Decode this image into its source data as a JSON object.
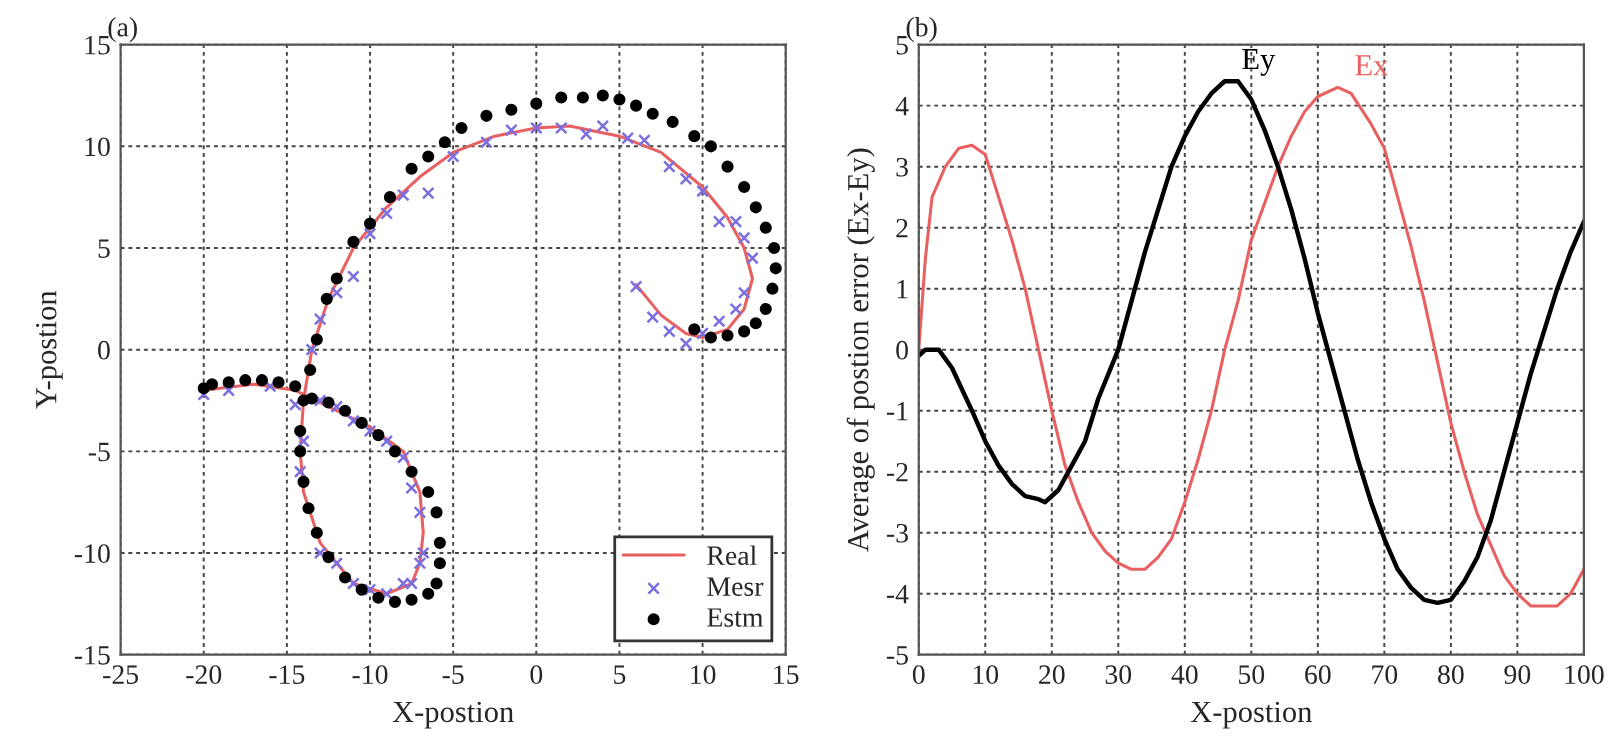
{
  "chart_data": [
    {
      "type": "line",
      "title": "(a)",
      "xlabel": "X-postion",
      "ylabel": "Y-postion",
      "xlim": [
        -25,
        15
      ],
      "ylim": [
        -15,
        15
      ],
      "xticks": [
        -25,
        -20,
        -15,
        -10,
        -5,
        0,
        5,
        10,
        15
      ],
      "yticks": [
        -15,
        -10,
        -5,
        0,
        5,
        10,
        15
      ],
      "grid": true,
      "legend": "bottom right",
      "series": [
        {
          "name": "Real",
          "type": "line",
          "color": "#e8605f",
          "marker": "none",
          "x": [
            -20,
            -17,
            -14.5,
            -12,
            -10,
            -8,
            -7,
            -6.8,
            -7,
            -7.5,
            -9,
            -11,
            -13,
            -14,
            -14.2,
            -14,
            -13.5,
            -12.5,
            -11,
            -9,
            -7,
            -5,
            -2.5,
            0,
            2,
            5,
            7.5,
            10,
            11.5,
            12.5,
            13,
            12.5,
            11.5,
            10,
            9,
            7.5,
            6
          ],
          "values": [
            -2,
            -1.7,
            -2,
            -3,
            -3.8,
            -5,
            -7,
            -9,
            -10.5,
            -11.5,
            -12,
            -11.5,
            -9.5,
            -7,
            -5,
            -2.5,
            0,
            2.5,
            5,
            7,
            8.5,
            9.7,
            10.5,
            10.9,
            11,
            10.5,
            9.7,
            8,
            6.5,
            5,
            3.5,
            2,
            1,
            0.6,
            0.8,
            1.7,
            3.2
          ]
        },
        {
          "name": "Mesr",
          "type": "scatter",
          "color": "#7b6fe0",
          "marker": "cross",
          "x": [
            -20,
            -18.5,
            -16,
            -14.5,
            -14,
            -13,
            -12,
            -11,
            -10,
            -9,
            -8,
            -7.5,
            -7,
            -6.8,
            -7,
            -7.5,
            -8,
            -9,
            -10,
            -11,
            -12,
            -13,
            -14,
            -14.2,
            -14,
            -13.5,
            -13,
            -12,
            -11,
            -10,
            -9,
            -8,
            -6.5,
            -5,
            -3,
            -1.5,
            0,
            1.5,
            3,
            4,
            5.5,
            6.5,
            8,
            9,
            10,
            11,
            12,
            12.5,
            13,
            12.5,
            12,
            11,
            10,
            9,
            8,
            7,
            6
          ],
          "values": [
            -2.2,
            -2,
            -1.8,
            -2.7,
            null,
            -2.5,
            -2.8,
            -3.5,
            -4,
            -4.5,
            -5.3,
            -6.8,
            -8,
            -10,
            -10.5,
            -11.5,
            -11.5,
            -12,
            -11.8,
            -11.5,
            -10.5,
            -10,
            null,
            -6,
            -4.5,
            0,
            1.5,
            2.8,
            3.6,
            5.7,
            6.7,
            7.6,
            7.7,
            9.5,
            10.2,
            10.8,
            10.9,
            10.9,
            10.6,
            11,
            10.4,
            10.3,
            9,
            8.4,
            7.8,
            6.3,
            6.3,
            5.5,
            4.5,
            2.8,
            2,
            1.4,
            0.8,
            0.3,
            0.9,
            1.6,
            3.1
          ]
        },
        {
          "name": "Estm",
          "type": "scatter",
          "color": "#000000",
          "marker": "circle",
          "x": [
            -20,
            -19.5,
            -18.5,
            -17.5,
            -16.5,
            -15.5,
            -14.5,
            -13.5,
            -12.5,
            -11.5,
            -10.5,
            -9.5,
            -8.5,
            -7.5,
            -6.5,
            -6,
            -5.8,
            -5.8,
            -6,
            -6.5,
            -7.5,
            -8.5,
            -9.5,
            -10.5,
            -11.5,
            -12.5,
            -13.2,
            -13.7,
            -14,
            -14.2,
            -14.2,
            -14,
            -13.6,
            -13.2,
            -12.6,
            -12,
            -11,
            -10,
            -8.8,
            -7.5,
            -6.5,
            -5.5,
            -4.5,
            -3,
            -1.5,
            0,
            1.5,
            2.8,
            4,
            5,
            6,
            7,
            8.2,
            9.5,
            10.5,
            11.5,
            12.5,
            13.2,
            13.8,
            14.3,
            14.4,
            14.2,
            13.8,
            13.2,
            12.5,
            11.5,
            10.5,
            9.5
          ],
          "values": [
            -1.9,
            -1.7,
            -1.6,
            -1.5,
            -1.5,
            -1.6,
            -1.8,
            -2.4,
            -2.6,
            -3,
            -3.6,
            -4.2,
            -5,
            -6,
            -7,
            -8,
            -9.5,
            -10.5,
            -11.5,
            -12,
            -12.3,
            -12.4,
            -12.2,
            -11.8,
            -11.2,
            -10.2,
            -9,
            -7.8,
            -6.5,
            -5,
            -4,
            -2.5,
            -1,
            0.5,
            2.5,
            3.5,
            5.3,
            6.2,
            7.5,
            8.9,
            9.5,
            10.2,
            10.9,
            11.5,
            11.8,
            12.1,
            12.4,
            12.4,
            12.5,
            12.3,
            12,
            11.6,
            11.2,
            10.5,
            10,
            9,
            8,
            7,
            6,
            5,
            4,
            3,
            2,
            1.3,
            0.9,
            0.7,
            0.6,
            1
          ]
        }
      ]
    },
    {
      "type": "line",
      "title": "(b)",
      "xlabel": "X-postion",
      "ylabel": "Average of postion error (Ex-Ey)",
      "xlim": [
        0,
        100
      ],
      "ylim": [
        -5,
        5
      ],
      "xticks": [
        0,
        10,
        20,
        30,
        40,
        50,
        60,
        70,
        80,
        90,
        100
      ],
      "yticks": [
        -5,
        -4,
        -3,
        -2,
        -1,
        0,
        1,
        2,
        3,
        4,
        5
      ],
      "grid": true,
      "series": [
        {
          "name": "Ex",
          "color": "#e8605f",
          "x": [
            0,
            1,
            2,
            4,
            6,
            8,
            10,
            12,
            14,
            16,
            18,
            20,
            22,
            24,
            26,
            28,
            30,
            32,
            34,
            36,
            38,
            40,
            42,
            44,
            46,
            48,
            50,
            52,
            54,
            56,
            58,
            60,
            63,
            65,
            68,
            70,
            72,
            74,
            76,
            78,
            80,
            82,
            84,
            86,
            88,
            90,
            92,
            94,
            96,
            98,
            100
          ],
          "values": [
            0,
            1.5,
            2.5,
            3,
            3.3,
            3.35,
            3.2,
            2.5,
            1.8,
            1,
            0,
            -1,
            -1.9,
            -2.5,
            -3,
            -3.3,
            -3.5,
            -3.6,
            -3.6,
            -3.4,
            -3.1,
            -2.5,
            -1.8,
            -1,
            0,
            0.8,
            1.8,
            2.4,
            3,
            3.5,
            3.9,
            4.15,
            4.3,
            4.2,
            3.7,
            3.3,
            2.5,
            1.7,
            0.8,
            -0.2,
            -1.2,
            -2,
            -2.7,
            -3.2,
            -3.7,
            -4,
            -4.2,
            -4.2,
            -4.2,
            -4,
            -3.6
          ]
        },
        {
          "name": "Ey",
          "color": "#000000",
          "x": [
            0,
            1,
            3,
            5,
            8,
            10,
            12,
            14,
            16,
            18,
            19,
            21,
            23,
            25,
            27,
            30,
            32,
            34,
            36,
            38,
            40,
            42,
            44,
            46,
            48,
            50,
            52,
            54,
            56,
            58,
            60,
            62,
            64,
            66,
            68,
            70,
            72,
            74,
            76,
            78,
            80,
            82,
            84,
            86,
            88,
            90,
            92,
            94,
            96,
            98,
            100
          ],
          "values": [
            -0.1,
            0,
            0,
            -0.3,
            -1,
            -1.5,
            -1.9,
            -2.2,
            -2.4,
            -2.45,
            -2.5,
            -2.3,
            -1.9,
            -1.5,
            -0.8,
            0,
            0.8,
            1.6,
            2.3,
            3,
            3.5,
            3.9,
            4.2,
            4.4,
            4.4,
            4.1,
            3.6,
            3,
            2.3,
            1.5,
            0.6,
            -0.2,
            -1,
            -1.8,
            -2.5,
            -3.1,
            -3.6,
            -3.9,
            -4.1,
            -4.15,
            -4.1,
            -3.8,
            -3.4,
            -2.8,
            -2,
            -1.2,
            -0.4,
            0.3,
            1,
            1.6,
            2.1
          ]
        }
      ]
    }
  ]
}
